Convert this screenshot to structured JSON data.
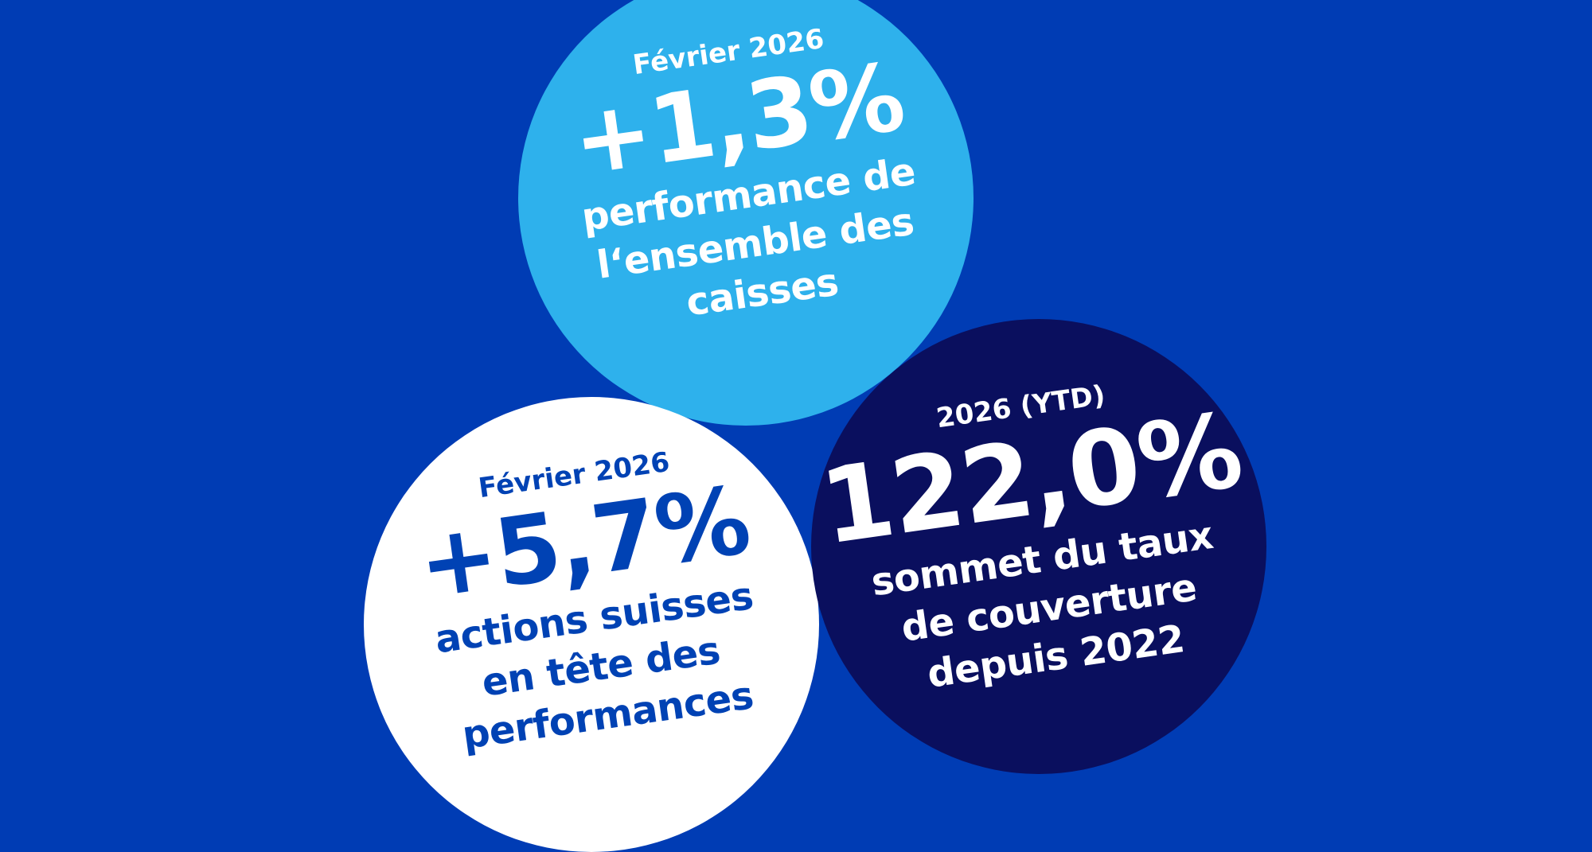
{
  "colors": {
    "background": "#003CB4",
    "light_blue": "#2EB1EC",
    "white": "#FFFFFF",
    "navy": "#0A0F5E",
    "text_blue": "#0042B4"
  },
  "circles": [
    {
      "label": "Février 2026",
      "value": "+1,3%",
      "lines": [
        "performance de",
        "l‘ensemble des",
        "caisses"
      ]
    },
    {
      "label": "Février 2026",
      "value": "+5,7%",
      "lines": [
        "actions suisses",
        "en tête des",
        "performances"
      ]
    },
    {
      "label": "2026 (YTD)",
      "value": "122,0%",
      "lines": [
        "sommet du taux",
        "de couverture",
        "depuis 2022"
      ]
    }
  ]
}
